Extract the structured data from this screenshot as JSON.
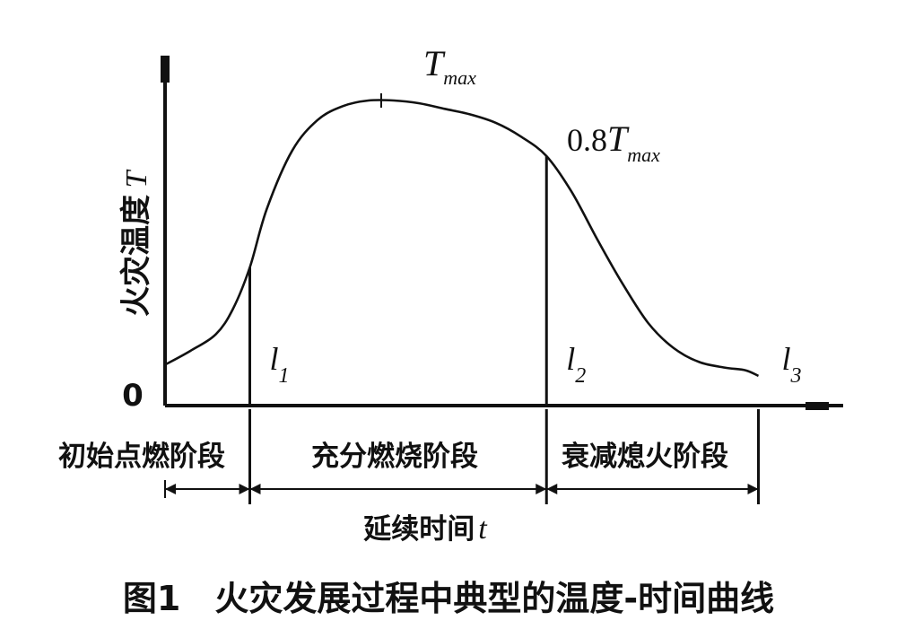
{
  "caption": "图1　火灾发展过程中典型的温度-时间曲线",
  "chart_data": {
    "type": "line",
    "title": "",
    "ylabel": "火灾温度",
    "ylabel_symbol": "T",
    "xlabel": "延续时间",
    "xlabel_symbol": "t",
    "origin_label": "0",
    "peak_label": {
      "base": "T",
      "sub": "max"
    },
    "level_label": {
      "prefix": "0.8",
      "base": "T",
      "sub": "max"
    },
    "time_markers": [
      {
        "id": "l1",
        "base": "l",
        "sub": "1",
        "x": 1.0,
        "y": 0.4
      },
      {
        "id": "l2",
        "base": "l",
        "sub": "2",
        "x": 4.5,
        "y": 0.8
      },
      {
        "id": "l3",
        "base": "l",
        "sub": "3",
        "x": 7.0,
        "y": 0.0
      }
    ],
    "phases": [
      {
        "name": "初始点燃阶段",
        "from": 0,
        "to": 1.0
      },
      {
        "name": "充分燃烧阶段",
        "from": 1.0,
        "to": 4.5
      },
      {
        "name": "衰减熄火阶段",
        "from": 4.5,
        "to": 7.0
      }
    ],
    "units_note": "Qualitative curve: x in arbitrary time units (l1=1, l2=4.5, l3=7), y as fraction of Tmax",
    "x": [
      0,
      0.3,
      0.6,
      0.8,
      1.0,
      1.2,
      1.5,
      1.8,
      2.1,
      2.4,
      2.7,
      3.0,
      3.3,
      3.6,
      3.9,
      4.2,
      4.5,
      4.8,
      5.1,
      5.4,
      5.7,
      6.0,
      6.3,
      6.6,
      6.85,
      7.0
    ],
    "y": [
      0.05,
      0.1,
      0.16,
      0.25,
      0.4,
      0.61,
      0.82,
      0.93,
      0.98,
      1.0,
      1.0,
      0.99,
      0.97,
      0.95,
      0.92,
      0.87,
      0.8,
      0.67,
      0.5,
      0.34,
      0.2,
      0.11,
      0.06,
      0.04,
      0.03,
      0.01
    ],
    "xlim": [
      0,
      8.0
    ],
    "ylim": [
      0,
      1.0
    ]
  }
}
